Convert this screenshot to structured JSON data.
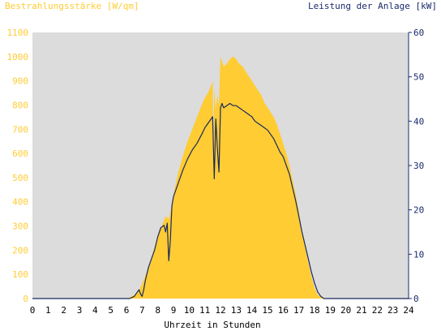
{
  "chart_data": {
    "type": "area",
    "title_left": "Bestrahlungsstärke [W/qm]",
    "title_right": "Leistung der Anlage [kW]",
    "xlabel": "Uhrzeit in Stunden",
    "xlim": [
      0,
      24
    ],
    "y_left_lim": [
      0,
      1100
    ],
    "y_right_lim": [
      0,
      60
    ],
    "x_ticks": [
      "0",
      "1",
      "2",
      "3",
      "4",
      "5",
      "6",
      "7",
      "8",
      "9",
      "10",
      "11",
      "12",
      "13",
      "14",
      "15",
      "16",
      "17",
      "18",
      "19",
      "20",
      "21",
      "22",
      "23",
      "24"
    ],
    "y_left_ticks": [
      "0",
      "100",
      "200",
      "300",
      "400",
      "500",
      "600",
      "700",
      "800",
      "900",
      "1000",
      "1100"
    ],
    "y_right_ticks": [
      "0",
      "10",
      "20",
      "30",
      "40",
      "50",
      "60"
    ],
    "colors": {
      "irradiance_fill": "#ffcc33",
      "left_axis_text": "#ffcc33",
      "right_axis_text": "#1a2a6c",
      "power_line": "#1a2a5e",
      "plot_background": "#dcdcdc"
    },
    "series": [
      {
        "axis": "left",
        "x": [
          0,
          6.0,
          6.2,
          6.5,
          6.8,
          7.0,
          7.3,
          7.6,
          7.9,
          8.2,
          8.5,
          8.7,
          8.8,
          9.0,
          9.3,
          9.6,
          9.9,
          10.2,
          10.5,
          10.8,
          11.0,
          11.2,
          11.4,
          11.5,
          11.55,
          11.6,
          11.7,
          11.8,
          11.9,
          12.0,
          12.1,
          12.2,
          12.4,
          12.6,
          12.8,
          13.0,
          13.2,
          13.4,
          13.6,
          13.8,
          14.0,
          14.2,
          14.4,
          14.6,
          14.8,
          15.0,
          15.2,
          15.4,
          15.6,
          15.8,
          16.0,
          16.2,
          16.4,
          16.6,
          16.8,
          17.0,
          17.2,
          17.4,
          17.6,
          17.8,
          18.0,
          18.2,
          18.4,
          18.6,
          18.8,
          19.0,
          19.2,
          24
        ],
        "y": [
          0,
          0,
          5,
          15,
          35,
          60,
          110,
          170,
          240,
          290,
          340,
          330,
          360,
          430,
          520,
          590,
          650,
          700,
          750,
          800,
          830,
          850,
          880,
          900,
          640,
          870,
          780,
          840,
          800,
          1000,
          980,
          960,
          970,
          990,
          1000,
          990,
          970,
          960,
          940,
          920,
          900,
          880,
          860,
          840,
          810,
          790,
          770,
          750,
          720,
          680,
          640,
          600,
          550,
          490,
          430,
          360,
          280,
          210,
          150,
          90,
          45,
          15,
          5,
          2,
          0,
          0,
          0,
          0
        ]
      },
      {
        "axis": "right",
        "x": [
          0,
          6.2,
          6.5,
          6.7,
          6.8,
          6.9,
          7.0,
          7.1,
          7.2,
          7.4,
          7.6,
          7.8,
          8.0,
          8.2,
          8.4,
          8.5,
          8.6,
          8.7,
          8.8,
          8.9,
          9.0,
          9.3,
          9.6,
          9.9,
          10.2,
          10.5,
          10.8,
          11.0,
          11.2,
          11.4,
          11.5,
          11.6,
          11.7,
          11.8,
          11.9,
          12.0,
          12.1,
          12.2,
          12.4,
          12.6,
          12.8,
          13.0,
          13.2,
          13.4,
          13.6,
          13.8,
          14.0,
          14.2,
          14.4,
          14.6,
          14.8,
          15.0,
          15.2,
          15.4,
          15.6,
          15.8,
          16.0,
          16.2,
          16.4,
          16.6,
          16.8,
          17.0,
          17.2,
          17.4,
          17.6,
          17.8,
          18.0,
          18.2,
          18.4,
          18.6,
          18.8,
          19.0,
          24
        ],
        "y": [
          0,
          0,
          0.5,
          1.5,
          2.0,
          1.0,
          0.5,
          2.0,
          4.0,
          7.0,
          9.0,
          11.0,
          14.0,
          16.0,
          16.5,
          15.0,
          17.0,
          8.5,
          13.0,
          21.0,
          23.0,
          26.0,
          29.0,
          31.5,
          33.5,
          35.0,
          37.0,
          38.5,
          39.5,
          40.5,
          41.0,
          27.0,
          40.5,
          34.0,
          28.5,
          43.0,
          44.0,
          43.0,
          43.5,
          44.0,
          43.5,
          43.5,
          43.0,
          42.5,
          42.0,
          41.5,
          41.0,
          40.0,
          39.5,
          39.0,
          38.5,
          38.0,
          37.0,
          36.0,
          34.5,
          33.0,
          32.0,
          30.0,
          28.0,
          25.0,
          22.0,
          18.5,
          15.0,
          12.0,
          9.0,
          6.0,
          3.5,
          1.5,
          0.5,
          0,
          0,
          0,
          0
        ]
      }
    ]
  }
}
